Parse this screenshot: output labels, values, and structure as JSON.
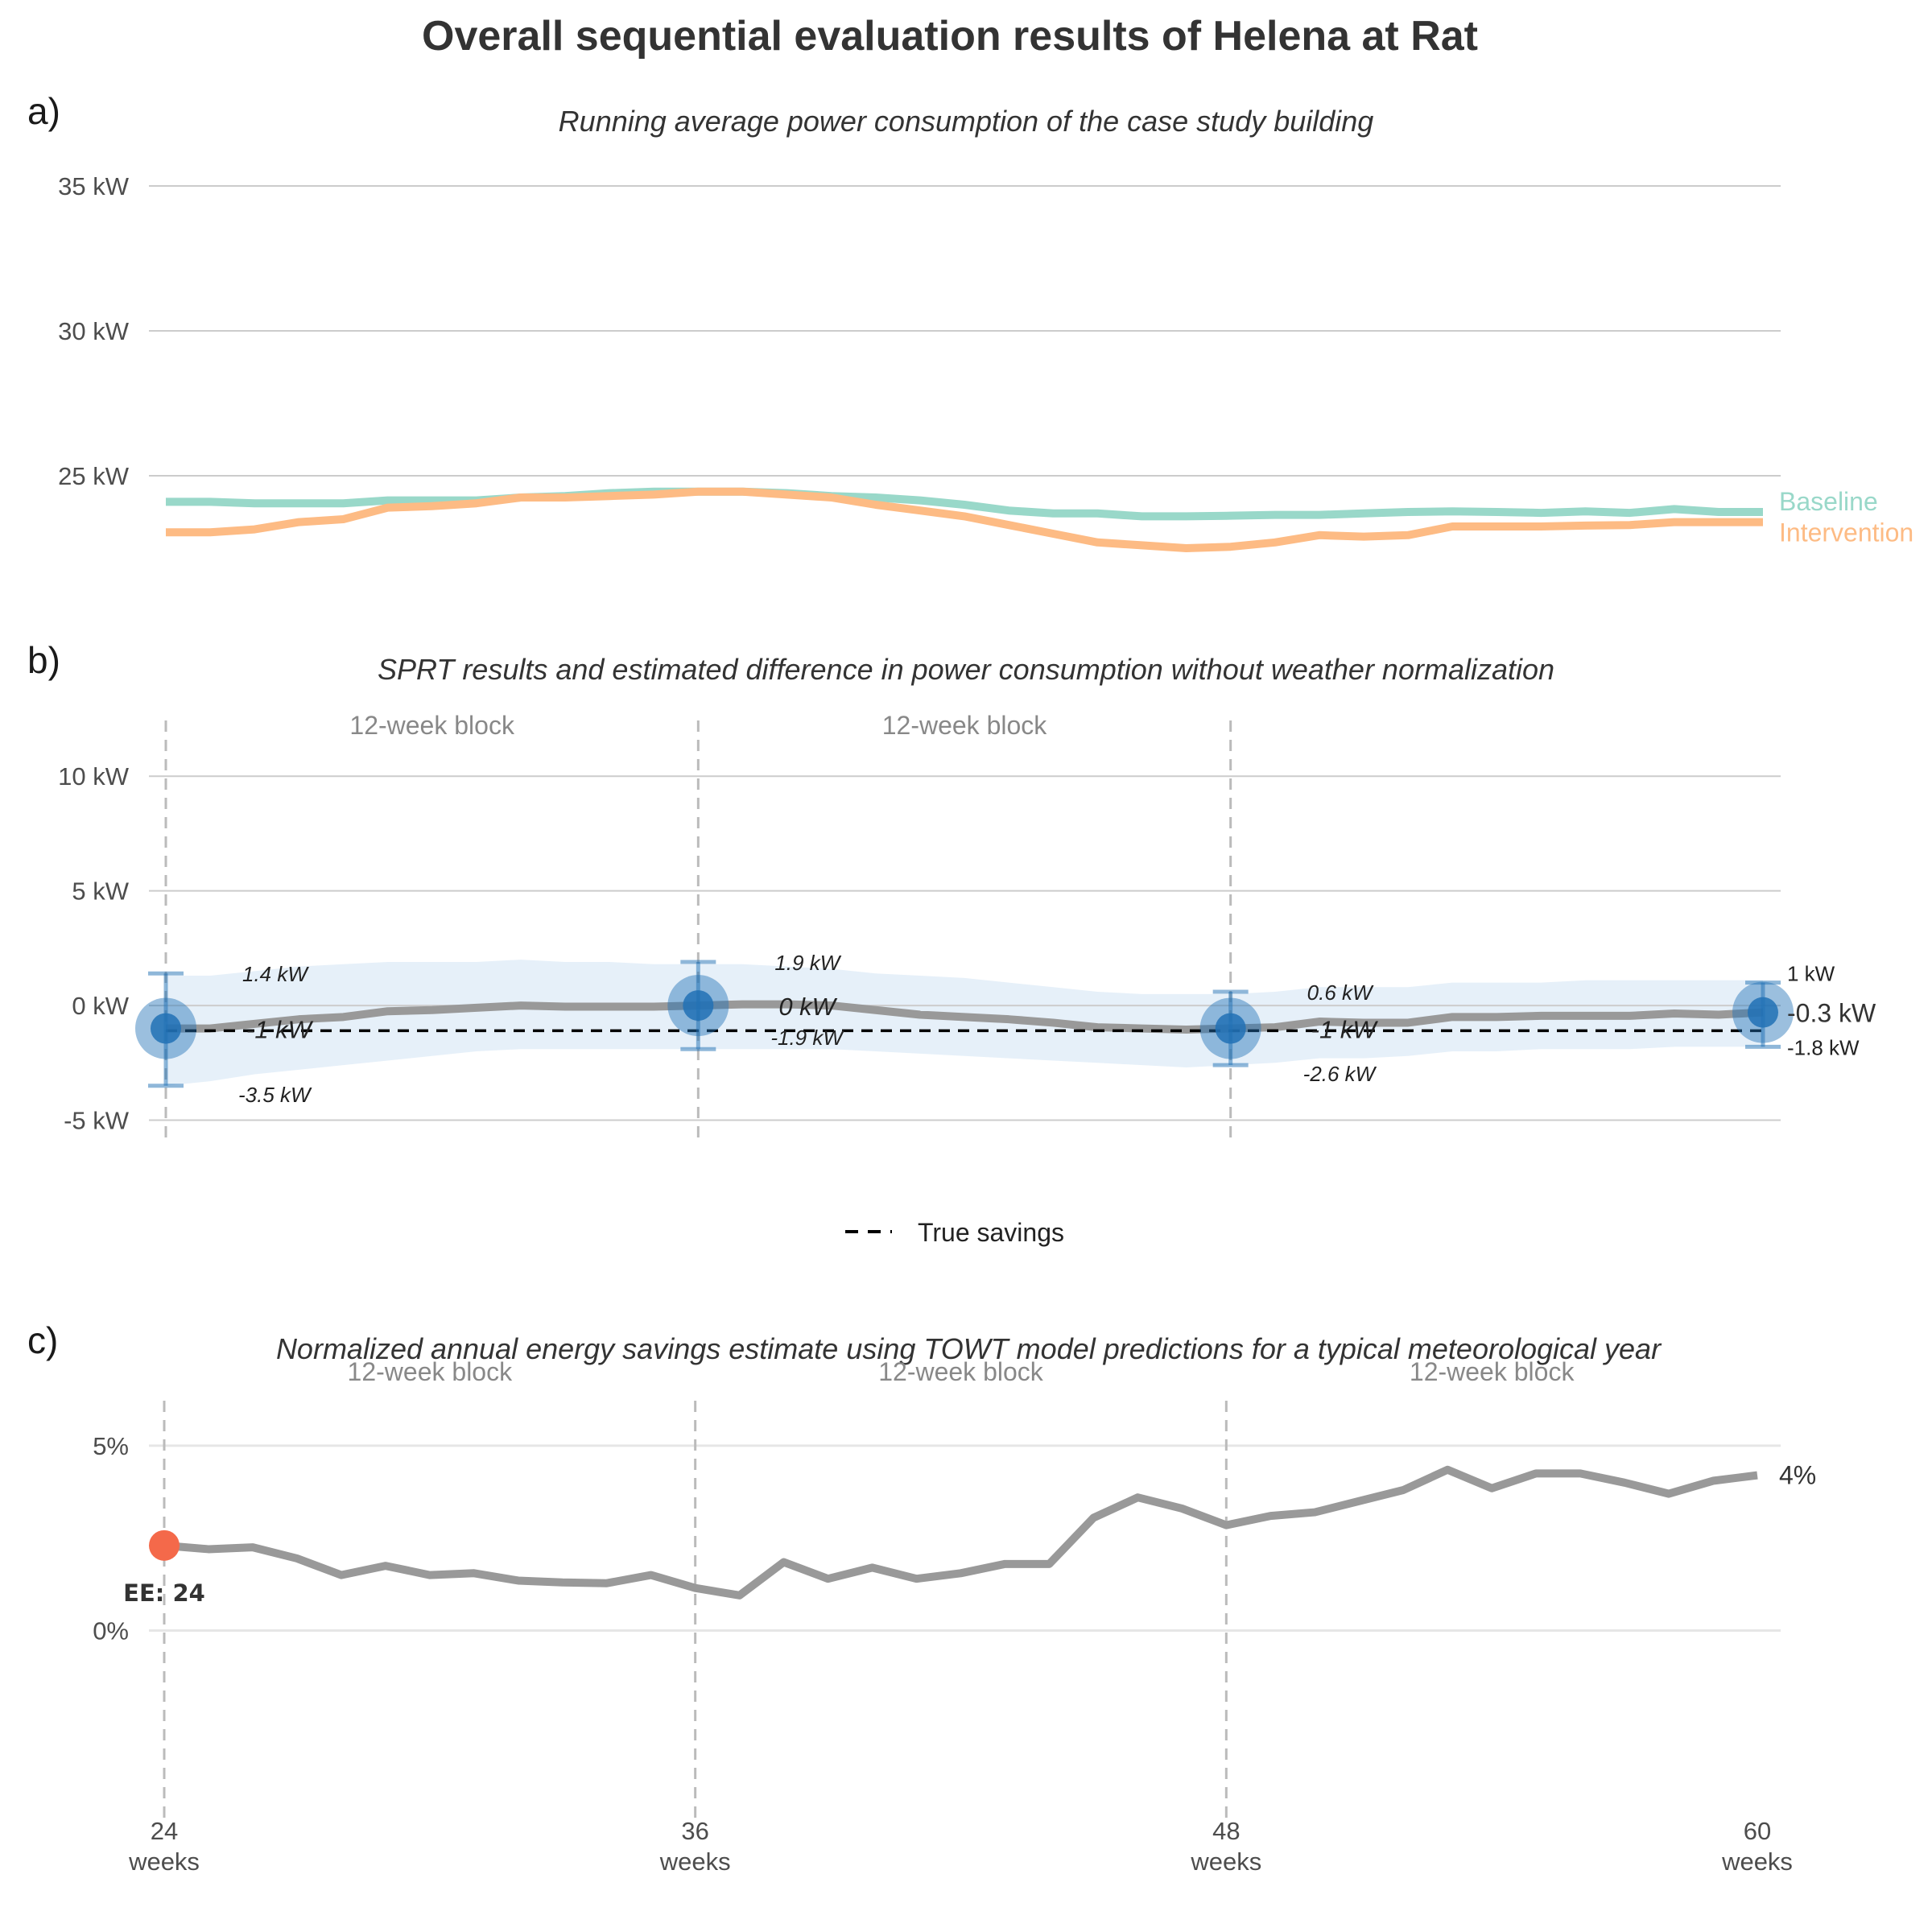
{
  "title": "Overall sequential evaluation results of Helena at Rat",
  "panels": {
    "a": {
      "tag": "a)",
      "subtitle": "Running average power consumption of the case study building"
    },
    "b": {
      "tag": "b)",
      "subtitle": "SPRT results and estimated difference in power consumption without weather normalization"
    },
    "c": {
      "tag": "c)",
      "subtitle": "Normalized annual energy savings estimate using TOWT model predictions for a typical meteorological year"
    }
  },
  "block_label": "12-week block",
  "x_ticks": [
    {
      "value": 24,
      "line1": "24",
      "line2": "weeks"
    },
    {
      "value": 36,
      "line1": "36",
      "line2": "weeks"
    },
    {
      "value": 48,
      "line1": "48",
      "line2": "weeks"
    },
    {
      "value": 60,
      "line1": "60",
      "line2": "weeks"
    }
  ],
  "colors": {
    "baseline": "#99d8c9",
    "intervention": "#fdbb84",
    "estimate_line": "#999999",
    "ribbon": "#deebf7",
    "sprt_point": "#2171b5",
    "ee_point": "#f4694a",
    "grid": "#cccccc",
    "block_divider": "#bbbbbb"
  },
  "legend": {
    "true_savings": "True savings"
  },
  "chart_data": [
    {
      "panel": "a",
      "type": "line",
      "title": "Running average power consumption of the case study building",
      "ylim": [
        21,
        36
      ],
      "y_ticks": [
        {
          "value": 25,
          "label": "25 kW"
        },
        {
          "value": 30,
          "label": "30 kW"
        },
        {
          "value": 35,
          "label": "35 kW"
        }
      ],
      "x": [
        24,
        25,
        26,
        27,
        28,
        29,
        30,
        31,
        32,
        33,
        34,
        35,
        36,
        37,
        38,
        39,
        40,
        41,
        42,
        43,
        44,
        45,
        46,
        47,
        48,
        49,
        50,
        51,
        52,
        53,
        54,
        55,
        56,
        57,
        58,
        59,
        60
      ],
      "series": [
        {
          "name": "Baseline",
          "color": "#99d8c9",
          "values": [
            24.1,
            24.1,
            24.05,
            24.05,
            24.05,
            24.15,
            24.15,
            24.15,
            24.25,
            24.3,
            24.4,
            24.45,
            24.45,
            24.45,
            24.4,
            24.3,
            24.25,
            24.15,
            24.0,
            23.8,
            23.7,
            23.7,
            23.6,
            23.6,
            23.62,
            23.65,
            23.65,
            23.7,
            23.75,
            23.77,
            23.75,
            23.72,
            23.77,
            23.72,
            23.85,
            23.75,
            23.75
          ]
        },
        {
          "name": "Intervention",
          "color": "#fdbb84",
          "values": [
            23.05,
            23.05,
            23.15,
            23.4,
            23.5,
            23.9,
            23.95,
            24.05,
            24.25,
            24.25,
            24.3,
            24.35,
            24.45,
            24.45,
            24.35,
            24.25,
            24.0,
            23.8,
            23.6,
            23.3,
            23.0,
            22.7,
            22.6,
            22.5,
            22.55,
            22.7,
            22.95,
            22.9,
            22.95,
            23.25,
            23.25,
            23.25,
            23.28,
            23.3,
            23.4,
            23.4,
            23.4
          ]
        }
      ]
    },
    {
      "panel": "b",
      "type": "line",
      "title": "SPRT results and estimated difference in power consumption without weather normalization",
      "ylim": [
        -6,
        12.5
      ],
      "y_ticks": [
        {
          "value": -5,
          "label": "-5 kW"
        },
        {
          "value": 0,
          "label": "0 kW"
        },
        {
          "value": 5,
          "label": "5 kW"
        },
        {
          "value": 10,
          "label": "10 kW"
        }
      ],
      "x": [
        24,
        25,
        26,
        27,
        28,
        29,
        30,
        31,
        32,
        33,
        34,
        35,
        36,
        37,
        38,
        39,
        40,
        41,
        42,
        43,
        44,
        45,
        46,
        47,
        48,
        49,
        50,
        51,
        52,
        53,
        54,
        55,
        56,
        57,
        58,
        59,
        60
      ],
      "estimate": [
        -1.0,
        -1.0,
        -0.8,
        -0.6,
        -0.5,
        -0.25,
        -0.2,
        -0.1,
        0.0,
        -0.05,
        -0.05,
        -0.05,
        0.0,
        0.05,
        0.05,
        0.0,
        -0.2,
        -0.4,
        -0.5,
        -0.6,
        -0.75,
        -0.95,
        -1.0,
        -1.05,
        -1.0,
        -0.95,
        -0.7,
        -0.75,
        -0.75,
        -0.5,
        -0.5,
        -0.45,
        -0.45,
        -0.45,
        -0.35,
        -0.4,
        -0.3
      ],
      "ribbon_upper": [
        1.3,
        1.3,
        1.5,
        1.7,
        1.8,
        1.9,
        1.9,
        1.9,
        2.0,
        1.9,
        1.9,
        1.8,
        1.8,
        1.8,
        1.7,
        1.6,
        1.4,
        1.3,
        1.2,
        1.0,
        0.8,
        0.6,
        0.5,
        0.5,
        0.5,
        0.6,
        0.8,
        0.8,
        0.8,
        1.0,
        1.0,
        1.0,
        1.1,
        1.1,
        1.1,
        1.1,
        1.1
      ],
      "ribbon_lower": [
        -3.5,
        -3.3,
        -3.0,
        -2.8,
        -2.6,
        -2.4,
        -2.2,
        -2.0,
        -1.9,
        -1.9,
        -1.9,
        -1.9,
        -1.9,
        -1.9,
        -1.9,
        -1.9,
        -2.0,
        -2.1,
        -2.2,
        -2.3,
        -2.4,
        -2.5,
        -2.6,
        -2.7,
        -2.6,
        -2.5,
        -2.3,
        -2.3,
        -2.2,
        -2.0,
        -2.0,
        -1.9,
        -1.9,
        -1.9,
        -1.8,
        -1.8,
        -1.8
      ],
      "true_savings": -1.1,
      "sprt_points": [
        {
          "x": 24,
          "estimate": -1.0,
          "upper": 1.4,
          "lower": -3.5,
          "label_estimate": "-1 kW",
          "label_upper": "1.4 kW",
          "label_lower": "-3.5 kW"
        },
        {
          "x": 36,
          "estimate": 0.0,
          "upper": 1.9,
          "lower": -1.9,
          "label_estimate": "0 kW",
          "label_upper": "1.9 kW",
          "label_lower": "-1.9 kW"
        },
        {
          "x": 48,
          "estimate": -1.0,
          "upper": 0.6,
          "lower": -2.6,
          "label_estimate": "-1 kW",
          "label_upper": "0.6 kW",
          "label_lower": "-2.6 kW"
        },
        {
          "x": 60,
          "estimate": -0.3,
          "upper": 1.0,
          "lower": -1.8,
          "label_estimate": "-0.3 kW",
          "label_upper": "1 kW",
          "label_lower": "-1.8 kW"
        }
      ]
    },
    {
      "panel": "c",
      "type": "line",
      "title": "Normalized annual energy savings estimate using TOWT model predictions for a typical meteorological year",
      "ylim": [
        -5,
        6
      ],
      "y_ticks": [
        {
          "value": 0,
          "label": "0%"
        },
        {
          "value": 5,
          "label": "5%"
        }
      ],
      "x": [
        24,
        25,
        26,
        27,
        28,
        29,
        30,
        31,
        32,
        33,
        34,
        35,
        36,
        37,
        38,
        39,
        40,
        41,
        42,
        43,
        44,
        45,
        46,
        47,
        48,
        49,
        50,
        51,
        52,
        53,
        54,
        55,
        56,
        57,
        58,
        59,
        60
      ],
      "values": [
        2.3,
        2.2,
        2.25,
        1.95,
        1.5,
        1.75,
        1.5,
        1.55,
        1.35,
        1.3,
        1.28,
        1.5,
        1.15,
        0.95,
        1.85,
        1.4,
        1.7,
        1.4,
        1.55,
        1.8,
        1.8,
        3.05,
        3.6,
        3.3,
        2.85,
        3.1,
        3.2,
        3.5,
        3.8,
        4.35,
        3.85,
        4.25,
        4.25,
        4.0,
        3.7,
        4.05,
        4.2
      ],
      "end_label": "4%",
      "early_evaluation": {
        "x": 24,
        "value": 2.3,
        "label": "EE: 24"
      }
    }
  ]
}
